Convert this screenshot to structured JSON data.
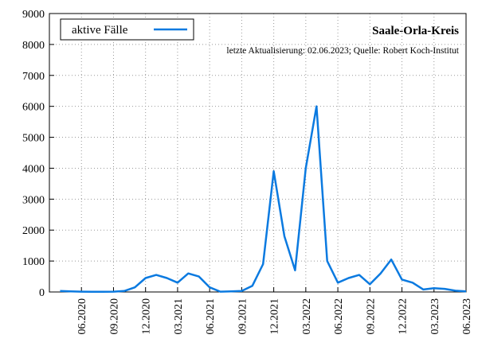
{
  "chart_data": {
    "type": "line",
    "title": "Saale-Orla-Kreis",
    "subtitle": "letzte Aktualisierung: 02.06.2023; Quelle: Robert Koch-Institut",
    "x": [
      "2020-04",
      "2020-05",
      "2020-06",
      "2020-07",
      "2020-08",
      "2020-09",
      "2020-10",
      "2020-11",
      "2020-12",
      "2021-01",
      "2021-02",
      "2021-03",
      "2021-04",
      "2021-05",
      "2021-06",
      "2021-07",
      "2021-08",
      "2021-09",
      "2021-10",
      "2021-11",
      "2021-12",
      "2022-01",
      "2022-02",
      "2022-03",
      "2022-04",
      "2022-05",
      "2022-06",
      "2022-07",
      "2022-08",
      "2022-09",
      "2022-10",
      "2022-11",
      "2022-12",
      "2023-01",
      "2023-02",
      "2023-03",
      "2023-04",
      "2023-05",
      "2023-06"
    ],
    "series": [
      {
        "name": "aktive Fälle",
        "color": "#0b7ae0",
        "values": [
          30,
          20,
          10,
          5,
          5,
          10,
          30,
          150,
          450,
          550,
          450,
          300,
          600,
          500,
          150,
          10,
          20,
          30,
          200,
          900,
          3900,
          1800,
          700,
          4000,
          6000,
          1000,
          300,
          450,
          550,
          250,
          600,
          1050,
          400,
          300,
          80,
          120,
          100,
          40,
          20
        ]
      }
    ],
    "xlim": [
      "2020-03",
      "2023-06"
    ],
    "xticks": [
      {
        "value": "2020-06",
        "label": "06.2020"
      },
      {
        "value": "2020-09",
        "label": "09.2020"
      },
      {
        "value": "2020-12",
        "label": "12.2020"
      },
      {
        "value": "2021-03",
        "label": "03.2021"
      },
      {
        "value": "2021-06",
        "label": "06.2021"
      },
      {
        "value": "2021-09",
        "label": "09.2021"
      },
      {
        "value": "2021-12",
        "label": "12.2021"
      },
      {
        "value": "2022-03",
        "label": "03.2022"
      },
      {
        "value": "2022-06",
        "label": "06.2022"
      },
      {
        "value": "2022-09",
        "label": "09.2022"
      },
      {
        "value": "2022-12",
        "label": "12.2022"
      },
      {
        "value": "2023-03",
        "label": "03.2023"
      },
      {
        "value": "2023-06",
        "label": "06.2023"
      }
    ],
    "ylim": [
      0,
      9000
    ],
    "yticks": [
      0,
      1000,
      2000,
      3000,
      4000,
      5000,
      6000,
      7000,
      8000,
      9000
    ],
    "grid": true
  }
}
